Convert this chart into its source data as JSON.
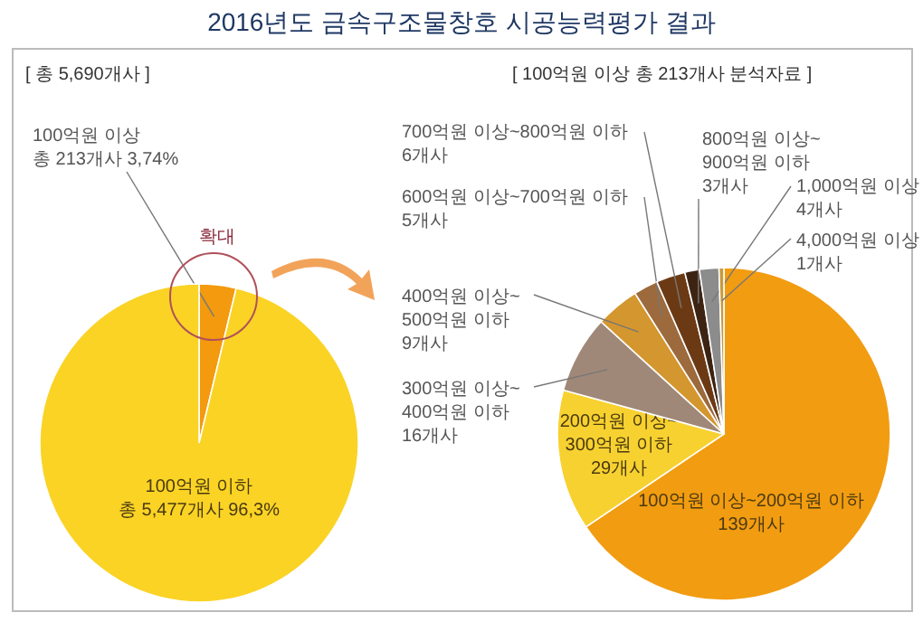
{
  "chart_data": [
    {
      "type": "pie",
      "title": "2016년도 금속구조물창호 시공능력평가 결과",
      "subtitle": "[ 총 5,690개사 ]",
      "categories": [
        "100억원 이상",
        "100억원 이하"
      ],
      "values": [
        213,
        5477
      ],
      "value_labels": [
        "총 213개사 3,74%",
        "총 5,477개사 96,3%"
      ],
      "colors": [
        "#f39a0e",
        "#fad325"
      ],
      "annotations": [
        "확대"
      ]
    },
    {
      "type": "pie",
      "subtitle": "[ 100억원 이상 총 213개사 분석자료 ]",
      "categories": [
        "100억원 이상~200억원 이하",
        "200억원 이상~300억원 이하",
        "300억원 이상~400억원 이하",
        "400억원 이상~500억원 이하",
        "600억원 이상~700억원 이하",
        "700억원 이상~800억원 이하",
        "800억원 이상~900억원 이하",
        "1,000억원 이상",
        "4,000억원 이상"
      ],
      "values": [
        139,
        29,
        16,
        9,
        5,
        6,
        3,
        4,
        1
      ],
      "value_labels": [
        "139개사",
        "29개사",
        "16개사",
        "9개사",
        "5개사",
        "6개사",
        "3개사",
        "4개사",
        "1개사"
      ],
      "colors": [
        "#f29c11",
        "#f7d130",
        "#a08878",
        "#d4962e",
        "#9c6a3c",
        "#6b3a14",
        "#3d2412",
        "#8c8c8c",
        "#c89a3c"
      ]
    }
  ]
}
